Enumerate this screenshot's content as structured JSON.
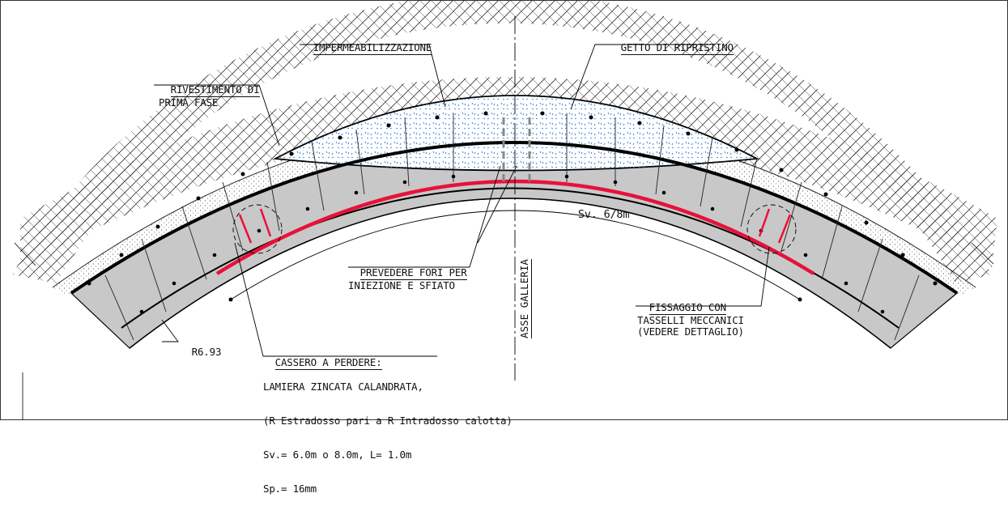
{
  "labels": {
    "impermeabilizzazione": "IMPERMEABILIZZAZIONE",
    "getto": "GETTO DI RIPRISTINO",
    "rivestimento": [
      "RIVESTIMENTO DI",
      "PRIMA FASE"
    ],
    "span": "Sv. 6/8m",
    "fori": [
      "PREVEDERE FORI PER",
      "INIEZIONE E SFIATO"
    ],
    "asse": "ASSE GALLERIA",
    "fissaggio": [
      "FISSAGGIO CON",
      "TASSELLI MECCANICI",
      "(VEDERE DETTAGLIO)"
    ],
    "radius": "R6.93",
    "cassero": [
      "CASSERO A PERDERE:",
      "LAMIERA ZINCATA CALANDRATA,",
      "(R Estradosso pari a R Intradosso calotta)",
      "Sv.= 6.0m o 8.0m, L= 1.0m",
      "Sp.= 16mm"
    ]
  },
  "colors": {
    "lining_fill": "#c8c8c8",
    "formwork": "#e8113a",
    "outline": "#000000",
    "injection_pipe": "#888888",
    "fill_dots": "#2f7fd6"
  }
}
